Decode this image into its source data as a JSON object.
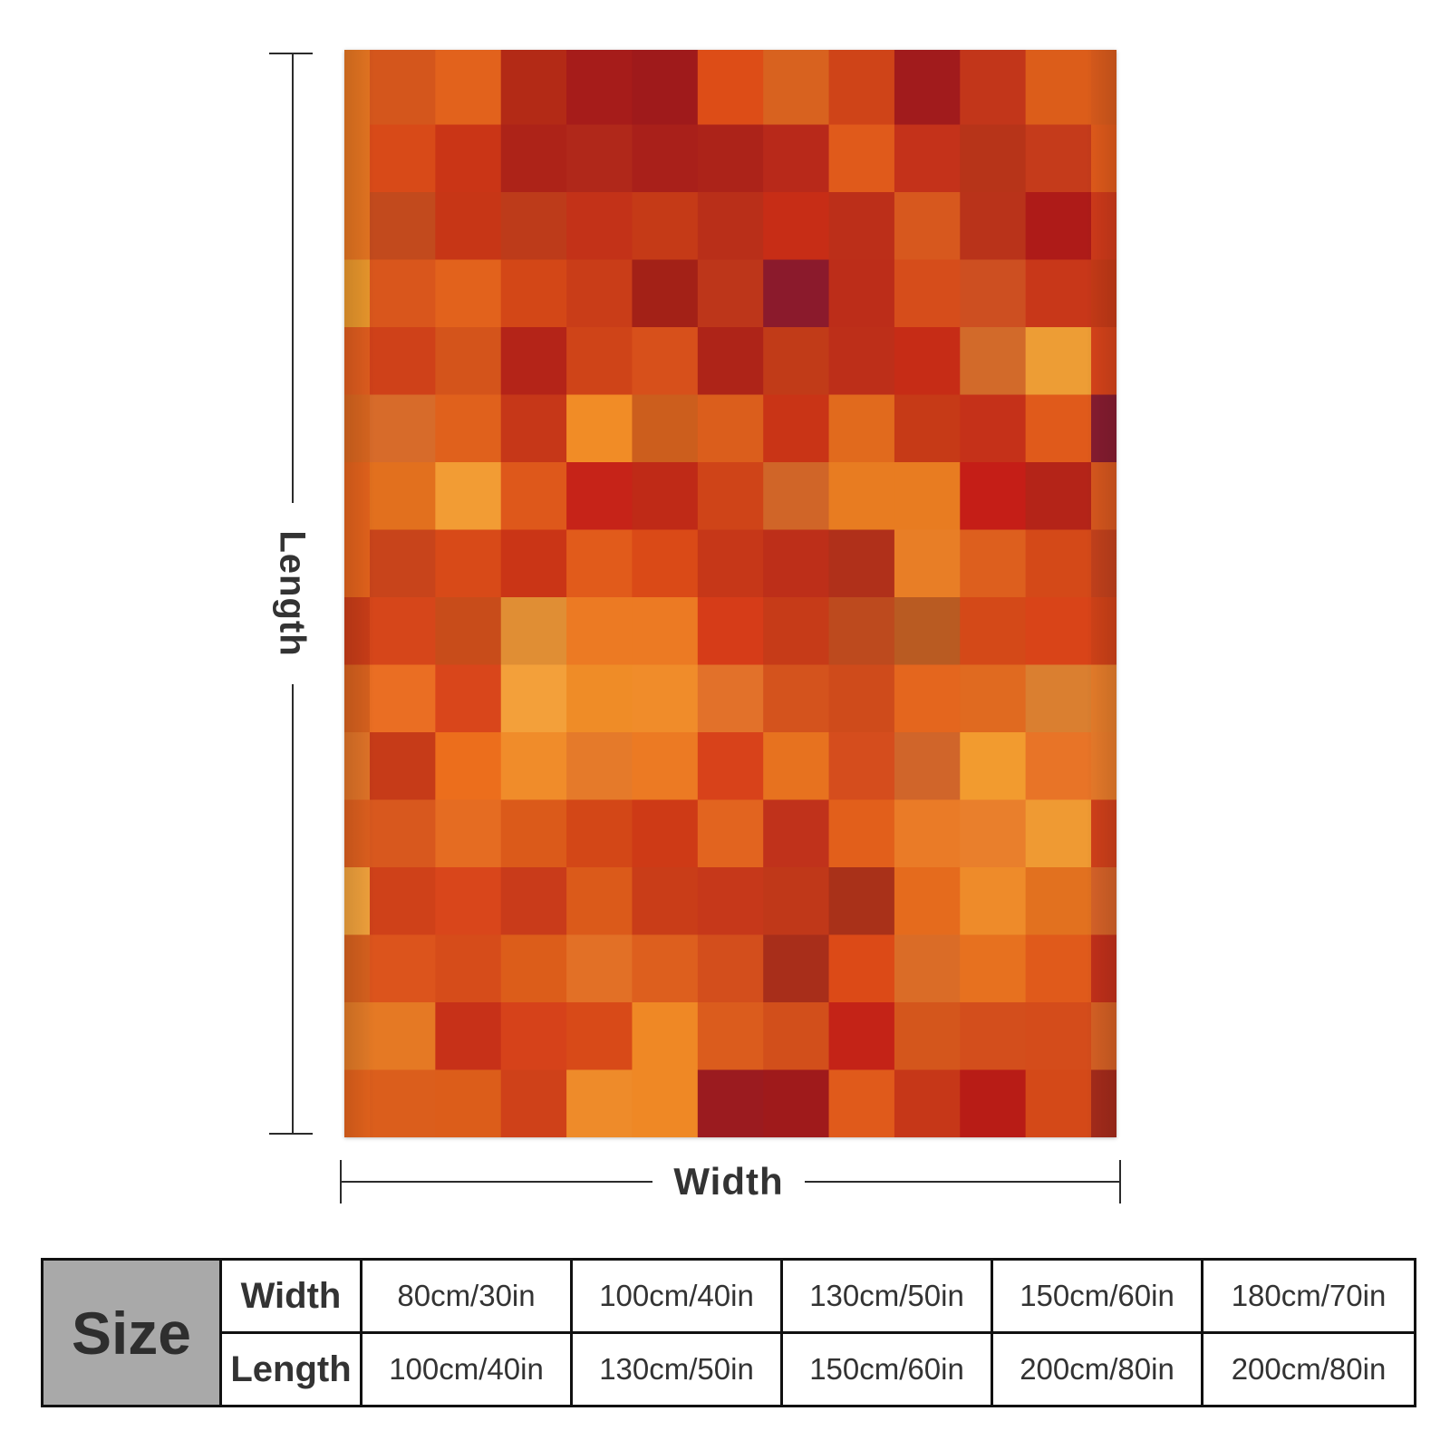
{
  "dimensions": {
    "length_label": "Length",
    "width_label": "Width"
  },
  "blanket": {
    "rows": 16,
    "cols": 13,
    "palette": [
      [
        "#e37421",
        "#d4561c",
        "#e2621c",
        "#b32a16",
        "#a61c1a",
        "#9f1a1b",
        "#dd4d17",
        "#d8621f",
        "#cf4418",
        "#a11b1c",
        "#c2361a",
        "#dc5d1a",
        "#d75a1c"
      ],
      [
        "#e37421",
        "#d84a18",
        "#ca3516",
        "#ad2318",
        "#b0281a",
        "#a9201a",
        "#ac2319",
        "#b8291a",
        "#e05a1b",
        "#c4321a",
        "#b73419",
        "#c53b1b",
        "#e05a1b"
      ],
      [
        "#e37421",
        "#c24a1d",
        "#c73616",
        "#bd3b1a",
        "#c33218",
        "#c53a17",
        "#b92f19",
        "#c72d16",
        "#bc2f19",
        "#d7581e",
        "#b9331a",
        "#ae1b18",
        "#cf3a1a"
      ],
      [
        "#e8962c",
        "#d9561c",
        "#e2621c",
        "#d34717",
        "#c93d18",
        "#a32117",
        "#bd361a",
        "#8b1a2c",
        "#bc2d19",
        "#d64d1b",
        "#cd4f21",
        "#c83719",
        "#c53a17"
      ],
      [
        "#de5c1e",
        "#cf4119",
        "#d4541b",
        "#b42418",
        "#cf4418",
        "#d7501b",
        "#ae2418",
        "#c13b18",
        "#bd2f19",
        "#c62c16",
        "#d26a2a",
        "#ed9d35",
        "#d6431a"
      ],
      [
        "#d7651f",
        "#d76b2a",
        "#e0611c",
        "#c63718",
        "#f18c26",
        "#cc5e1d",
        "#db5e1c",
        "#c93416",
        "#e16a1d",
        "#c63a17",
        "#c53119",
        "#e05a1b",
        "#861c30"
      ],
      [
        "#e2621c",
        "#e2701e",
        "#f29c34",
        "#de581b",
        "#c62318",
        "#bf2a17",
        "#cf4418",
        "#d06528",
        "#e87c21",
        "#e87c21",
        "#c51e17",
        "#b42418",
        "#d7571e"
      ],
      [
        "#e2621c",
        "#c8441b",
        "#d84a18",
        "#ca3516",
        "#e15b1b",
        "#da4a17",
        "#c63718",
        "#bd2f19",
        "#b0301a",
        "#e87e26",
        "#dd5f1e",
        "#d44918",
        "#c3411c"
      ],
      [
        "#c93d18",
        "#d6461a",
        "#c84c1a",
        "#e08e34",
        "#ec7a23",
        "#ec7a23",
        "#d63c18",
        "#c63b18",
        "#bd4a1e",
        "#b95b22",
        "#d44918",
        "#d94418",
        "#d04218"
      ],
      [
        "#d7611e",
        "#ea6e23",
        "#d9461b",
        "#f3a03a",
        "#ef8c27",
        "#f08c2a",
        "#e2712a",
        "#d4531d",
        "#cf4b1b",
        "#e4661e",
        "#e06a20",
        "#da7f30",
        "#e57c2a"
      ],
      [
        "#e07328",
        "#c63b18",
        "#ec6e1c",
        "#f08c2a",
        "#e57a2a",
        "#ec7a23",
        "#d8421a",
        "#e7721f",
        "#d54d1d",
        "#d0652a",
        "#f29b2f",
        "#e87427",
        "#e77a2a"
      ],
      [
        "#dd5f1e",
        "#d8581e",
        "#e56c22",
        "#db5a1a",
        "#d34717",
        "#ce3a16",
        "#e2641f",
        "#c0321b",
        "#e25f1b",
        "#ea7b27",
        "#e97f2c",
        "#ef9a33",
        "#d1401a"
      ],
      [
        "#f0a13c",
        "#cf4119",
        "#d9461b",
        "#c93b1a",
        "#db5a1a",
        "#c93d18",
        "#c6381a",
        "#c03819",
        "#a93119",
        "#e56b1d",
        "#ee8b2a",
        "#e2711f",
        "#d66228"
      ],
      [
        "#d7611e",
        "#dc541c",
        "#d64c1a",
        "#dc5d1a",
        "#e27026",
        "#dd5f1e",
        "#d34e1c",
        "#a82e1a",
        "#dc4a17",
        "#da6c27",
        "#e7711f",
        "#e05a1b",
        "#c2301a"
      ],
      [
        "#e27a27",
        "#e57924",
        "#c73118",
        "#d6421a",
        "#d84a18",
        "#ef8825",
        "#db5c1d",
        "#d24f1b",
        "#c42317",
        "#d4561c",
        "#d34e1c",
        "#d44c1b",
        "#d56024"
      ],
      [
        "#e2621c",
        "#db5e1c",
        "#dc5d1a",
        "#cf4119",
        "#ee8b2a",
        "#ef8825",
        "#9b1b1f",
        "#9f1a1b",
        "#e05a1b",
        "#c63718",
        "#b81c16",
        "#d44918",
        "#a52b1b"
      ]
    ]
  },
  "size_table": {
    "title": "Size",
    "rows": [
      {
        "label": "Width",
        "values": [
          "80cm/30in",
          "100cm/40in",
          "130cm/50in",
          "150cm/60in",
          "180cm/70in"
        ]
      },
      {
        "label": "Length",
        "values": [
          "100cm/40in",
          "130cm/50in",
          "150cm/60in",
          "200cm/80in",
          "200cm/80in"
        ]
      }
    ]
  }
}
